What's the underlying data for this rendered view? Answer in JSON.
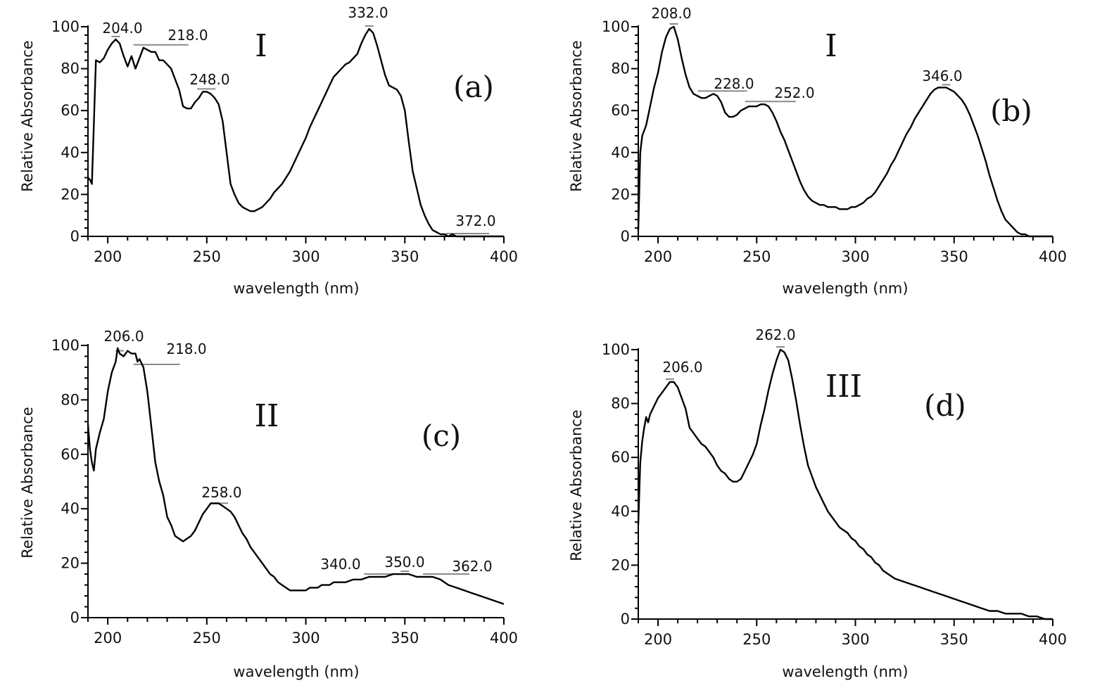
{
  "figure": {
    "colors": {
      "curve": "#000000",
      "axis": "#000000",
      "peak_marker": "#8a8a8a",
      "background": "#ffffff"
    }
  },
  "chart_data": [
    {
      "panel": "(a)",
      "compound": "I",
      "type": "line",
      "xlabel": "wavelength (nm)",
      "ylabel": "Relative Absorbance",
      "xlim": [
        190,
        400
      ],
      "ylim": [
        0,
        100
      ],
      "xticks": [
        200,
        250,
        300,
        350,
        400
      ],
      "yticks": [
        0,
        20,
        40,
        60,
        80,
        100
      ],
      "grid": false,
      "series": [
        {
          "x": [
            190,
            191,
            192,
            194,
            196,
            198,
            200,
            202,
            204,
            206,
            208,
            210,
            212,
            214,
            216,
            218,
            220,
            222,
            224,
            226,
            228,
            230,
            232,
            234,
            236,
            238,
            240,
            242,
            244,
            246,
            248,
            250,
            252,
            254,
            256,
            258,
            260,
            262,
            264,
            266,
            268,
            270,
            272,
            274,
            276,
            278,
            280,
            282,
            284,
            286,
            288,
            290,
            292,
            294,
            296,
            298,
            300,
            302,
            304,
            306,
            308,
            310,
            312,
            314,
            316,
            318,
            320,
            322,
            324,
            326,
            328,
            330,
            332,
            334,
            336,
            338,
            340,
            342,
            344,
            346,
            348,
            350,
            352,
            354,
            356,
            358,
            360,
            362,
            364,
            366,
            368,
            370,
            372,
            374,
            376,
            378,
            380,
            384,
            388,
            392,
            396,
            400
          ],
          "y": [
            28,
            27,
            25,
            84,
            83,
            85,
            89,
            92,
            94,
            92,
            86,
            81,
            86,
            80,
            85,
            90,
            89,
            88,
            88,
            84,
            84,
            82,
            80,
            75,
            70,
            62,
            61,
            61,
            64,
            66,
            69,
            69,
            68,
            66,
            63,
            55,
            40,
            25,
            20,
            16,
            14,
            13,
            12,
            12,
            13,
            14,
            16,
            18,
            21,
            23,
            25,
            28,
            31,
            35,
            39,
            43,
            47,
            52,
            56,
            60,
            64,
            68,
            72,
            76,
            78,
            80,
            82,
            83,
            85,
            87,
            92,
            96,
            99,
            97,
            91,
            84,
            77,
            72,
            71,
            70,
            67,
            60,
            45,
            31,
            23,
            15,
            10,
            6,
            3,
            2,
            1,
            1,
            0,
            1,
            0,
            0,
            0,
            0,
            0,
            0,
            0,
            0
          ]
        }
      ],
      "peaks": [
        {
          "x": 204.0,
          "label": "204.0"
        },
        {
          "x": 218.0,
          "label": "218.0"
        },
        {
          "x": 248.0,
          "label": "248.0"
        },
        {
          "x": 332.0,
          "label": "332.0"
        },
        {
          "x": 372.0,
          "label": "372.0"
        }
      ]
    },
    {
      "panel": "(b)",
      "compound": "I",
      "type": "line",
      "xlabel": "wavelength (nm)",
      "ylabel": "Relative Absorbance",
      "xlim": [
        190,
        400
      ],
      "ylim": [
        0,
        100
      ],
      "xticks": [
        200,
        250,
        300,
        350,
        400
      ],
      "yticks": [
        0,
        20,
        40,
        60,
        80,
        100
      ],
      "grid": false,
      "series": [
        {
          "x": [
            190,
            191,
            192,
            194,
            196,
            198,
            200,
            202,
            204,
            206,
            208,
            210,
            212,
            214,
            216,
            218,
            220,
            222,
            224,
            226,
            228,
            230,
            232,
            234,
            236,
            238,
            240,
            242,
            244,
            246,
            248,
            250,
            252,
            254,
            256,
            258,
            260,
            262,
            264,
            266,
            268,
            270,
            272,
            274,
            276,
            278,
            280,
            282,
            284,
            286,
            288,
            290,
            292,
            294,
            296,
            298,
            300,
            302,
            304,
            306,
            308,
            310,
            312,
            314,
            316,
            318,
            320,
            322,
            324,
            326,
            328,
            330,
            332,
            334,
            336,
            338,
            340,
            342,
            344,
            346,
            348,
            350,
            352,
            354,
            356,
            358,
            360,
            362,
            364,
            366,
            368,
            370,
            372,
            374,
            376,
            378,
            380,
            382,
            384,
            386,
            388,
            390,
            392,
            394,
            396,
            398,
            400
          ],
          "y": [
            3,
            40,
            48,
            53,
            62,
            71,
            78,
            88,
            95,
            99,
            100,
            94,
            85,
            77,
            71,
            68,
            67,
            66,
            66,
            67,
            68,
            67,
            64,
            59,
            57,
            57,
            58,
            60,
            61,
            62,
            62,
            62,
            63,
            63,
            62,
            59,
            55,
            50,
            46,
            41,
            36,
            31,
            26,
            22,
            19,
            17,
            16,
            15,
            15,
            14,
            14,
            14,
            13,
            13,
            13,
            14,
            14,
            15,
            16,
            18,
            19,
            21,
            24,
            27,
            30,
            34,
            37,
            41,
            45,
            49,
            52,
            56,
            59,
            62,
            65,
            68,
            70,
            71,
            71,
            71,
            70,
            69,
            67,
            65,
            62,
            58,
            53,
            48,
            42,
            36,
            29,
            23,
            17,
            12,
            8,
            6,
            4,
            2,
            1,
            1,
            0,
            0,
            0,
            0,
            0,
            0,
            0
          ]
        }
      ],
      "peaks": [
        {
          "x": 208.0,
          "label": "208.0"
        },
        {
          "x": 228.0,
          "label": "228.0"
        },
        {
          "x": 252.0,
          "label": "252.0"
        },
        {
          "x": 346.0,
          "label": "346.0"
        }
      ]
    },
    {
      "panel": "(c)",
      "compound": "II",
      "type": "line",
      "xlabel": "wavelength (nm)",
      "ylabel": "Relative Absorbance",
      "xlim": [
        190,
        400
      ],
      "ylim": [
        0,
        100
      ],
      "xticks": [
        200,
        250,
        300,
        350,
        400
      ],
      "yticks": [
        0,
        20,
        40,
        60,
        80,
        100
      ],
      "grid": false,
      "series": [
        {
          "x": [
            190,
            191,
            192,
            193,
            194,
            196,
            198,
            200,
            202,
            204,
            205,
            206,
            208,
            210,
            212,
            214,
            215,
            216,
            218,
            220,
            222,
            224,
            226,
            228,
            230,
            232,
            234,
            236,
            238,
            240,
            242,
            244,
            246,
            248,
            250,
            252,
            254,
            256,
            258,
            260,
            262,
            264,
            266,
            268,
            270,
            272,
            274,
            276,
            278,
            280,
            282,
            284,
            286,
            288,
            290,
            292,
            294,
            296,
            298,
            300,
            302,
            304,
            306,
            308,
            310,
            312,
            314,
            316,
            318,
            320,
            324,
            328,
            332,
            336,
            340,
            344,
            348,
            352,
            356,
            360,
            364,
            368,
            372,
            376,
            380,
            384,
            388,
            392,
            396,
            400
          ],
          "y": [
            71,
            62,
            57,
            54,
            62,
            68,
            73,
            83,
            90,
            94,
            99,
            97,
            96,
            98,
            97,
            97,
            94,
            95,
            92,
            83,
            70,
            57,
            50,
            45,
            37,
            34,
            30,
            29,
            28,
            29,
            30,
            32,
            35,
            38,
            40,
            42,
            42,
            42,
            41,
            40,
            39,
            37,
            34,
            31,
            29,
            26,
            24,
            22,
            20,
            18,
            16,
            15,
            13,
            12,
            11,
            10,
            10,
            10,
            10,
            10,
            11,
            11,
            11,
            12,
            12,
            12,
            13,
            13,
            13,
            13,
            14,
            14,
            15,
            15,
            15,
            16,
            16,
            16,
            15,
            15,
            15,
            14,
            12,
            11,
            10,
            9,
            8,
            7,
            6,
            5
          ]
        }
      ],
      "peaks": [
        {
          "x": 206.0,
          "label": "206.0"
        },
        {
          "x": 218.0,
          "label": "218.0"
        },
        {
          "x": 258.0,
          "label": "258.0"
        },
        {
          "x": 340.0,
          "label": "340.0"
        },
        {
          "x": 350.0,
          "label": "350.0"
        },
        {
          "x": 362.0,
          "label": "362.0"
        }
      ]
    },
    {
      "panel": "(d)",
      "compound": "III",
      "type": "line",
      "xlabel": "wavelength (nm)",
      "ylabel": "Relative Absorbance",
      "xlim": [
        190,
        400
      ],
      "ylim": [
        0,
        100
      ],
      "xticks": [
        200,
        250,
        300,
        350,
        400
      ],
      "yticks": [
        0,
        20,
        40,
        60,
        80,
        100
      ],
      "grid": false,
      "series": [
        {
          "x": [
            190,
            191,
            192,
            193,
            194,
            195,
            196,
            198,
            200,
            202,
            204,
            206,
            208,
            210,
            212,
            214,
            216,
            218,
            220,
            222,
            224,
            226,
            228,
            230,
            232,
            234,
            236,
            238,
            240,
            242,
            244,
            246,
            248,
            250,
            252,
            254,
            256,
            258,
            260,
            262,
            264,
            266,
            268,
            270,
            272,
            274,
            276,
            278,
            280,
            282,
            284,
            286,
            288,
            290,
            292,
            294,
            296,
            298,
            300,
            302,
            304,
            306,
            308,
            310,
            312,
            314,
            316,
            318,
            320,
            324,
            328,
            332,
            336,
            340,
            344,
            348,
            352,
            356,
            360,
            364,
            368,
            372,
            376,
            380,
            384,
            388,
            392,
            396,
            400
          ],
          "y": [
            35,
            58,
            66,
            71,
            75,
            73,
            76,
            79,
            82,
            84,
            86,
            88,
            88,
            86,
            82,
            78,
            71,
            69,
            67,
            65,
            64,
            62,
            60,
            57,
            55,
            54,
            52,
            51,
            51,
            52,
            55,
            58,
            61,
            65,
            72,
            78,
            85,
            91,
            96,
            100,
            99,
            96,
            89,
            81,
            72,
            64,
            57,
            53,
            49,
            46,
            43,
            40,
            38,
            36,
            34,
            33,
            32,
            30,
            29,
            27,
            26,
            24,
            23,
            21,
            20,
            18,
            17,
            16,
            15,
            14,
            13,
            12,
            11,
            10,
            9,
            8,
            7,
            6,
            5,
            4,
            3,
            3,
            2,
            2,
            2,
            1,
            1,
            0,
            0
          ]
        }
      ],
      "peaks": [
        {
          "x": 206.0,
          "label": "206.0"
        },
        {
          "x": 262.0,
          "label": "262.0"
        }
      ]
    }
  ]
}
